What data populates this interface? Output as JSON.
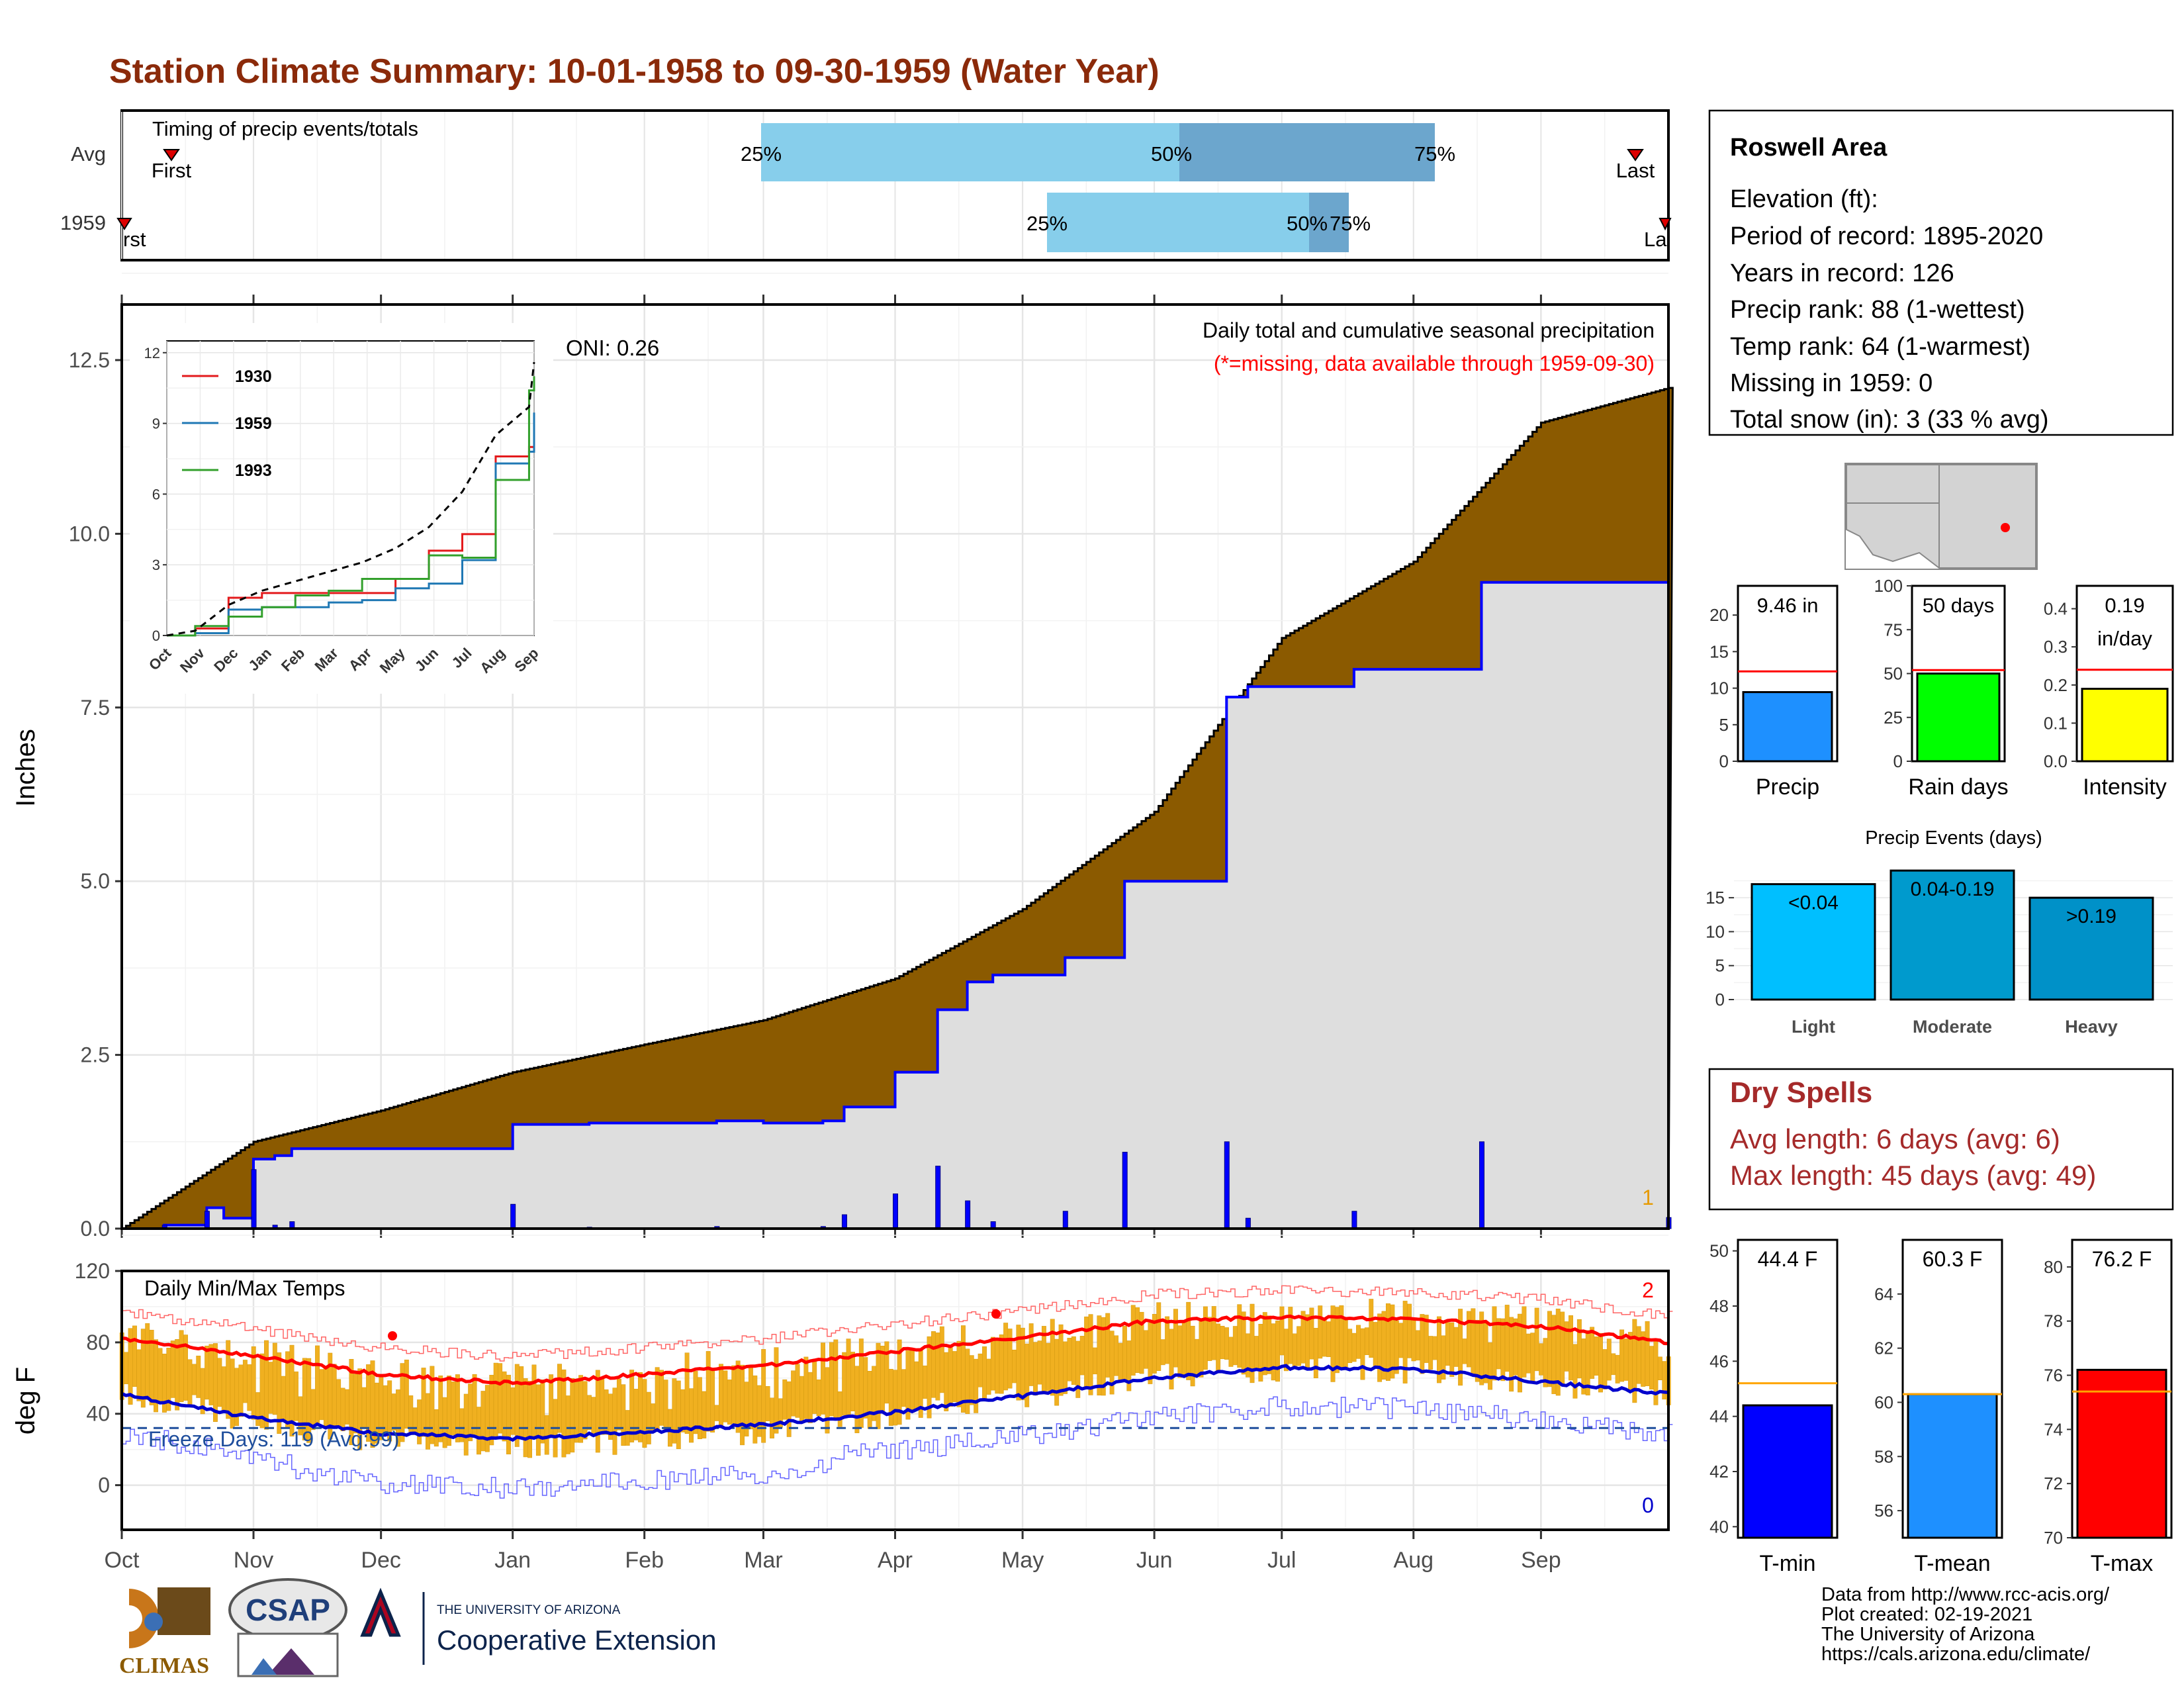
{
  "title": "Station Climate Summary: 10-01-1958 to 09-30-1959 (Water Year)",
  "colors": {
    "title": "#8B2A0A",
    "precip_fill": "#8B5A00",
    "avg_fill": "#DEDEDE",
    "this_year_line": "#0000FF",
    "tmax": "#FF0000",
    "tmin": "#0000CC",
    "temp_bar": "#F0B020",
    "timing_light": "#87CEEB",
    "timing_dark": "#6CA6CD",
    "dry_spells": "#A52A2A"
  },
  "months": [
    "Oct",
    "Nov",
    "Dec",
    "Jan",
    "Feb",
    "Mar",
    "Apr",
    "May",
    "Jun",
    "Jul",
    "Aug",
    "Sep"
  ],
  "timing": {
    "heading": "Timing of precip events/totals",
    "rows": [
      {
        "label": "Avg",
        "first_label": "First",
        "last_label": "Last",
        "p25": "25%",
        "p50": "50%",
        "p75": "75%"
      },
      {
        "label": "1959",
        "first_label": "rst",
        "last_label": "La",
        "p25": "25%",
        "p50": "50%",
        "p75": "75%"
      }
    ]
  },
  "station": {
    "name": "Roswell Area",
    "elevation": "Elevation (ft):",
    "period": "Period of record: 1895-2020",
    "years": "Years in record: 126",
    "precip_rank": "Precip rank: 88 (1-wettest)",
    "temp_rank": "Temp rank: 64 (1-warmest)",
    "missing": "Missing in 1959: 0",
    "snow": "Total snow (in): 3 (33 % avg)"
  },
  "precip_panel": {
    "ylabel": "Inches",
    "oni": "ONI: 0.26",
    "caption": "Daily total and cumulative seasonal precipitation",
    "note": "(*=missing, data available through 1959-09-30)",
    "count_label": "1",
    "yticks": [
      "0.0",
      "2.5",
      "5.0",
      "7.5",
      "10.0",
      "12.5"
    ]
  },
  "inset": {
    "yticks": [
      "0",
      "3",
      "6",
      "9",
      "12"
    ],
    "legend": [
      "1930",
      "1959",
      "1993"
    ]
  },
  "temp_panel": {
    "ylabel": "deg F",
    "caption": "Daily Min/Max Temps",
    "freeze": "Freeze Days: 119 (Avg:99)",
    "count_high": "2",
    "count_low": "0",
    "yticks": [
      "0",
      "40",
      "80",
      "120"
    ]
  },
  "mini_bars": [
    {
      "label": "Precip",
      "value_text": "9.46 in",
      "value": 9.46,
      "avg": 12.3,
      "ylim": [
        0,
        24
      ],
      "ticks": [
        "0",
        "5",
        "10",
        "15",
        "20"
      ],
      "color": "#1E90FF",
      "avg_color": "#FF0000"
    },
    {
      "label": "Rain days",
      "value_text": "50 days",
      "value": 50,
      "avg": 52,
      "ylim": [
        0,
        100
      ],
      "ticks": [
        "0",
        "25",
        "50",
        "75",
        "100"
      ],
      "color": "#00FF00",
      "avg_color": "#FF0000"
    },
    {
      "label": "Intensity",
      "value_text": "0.19",
      "value_text2": "in/day",
      "value": 0.19,
      "avg": 0.24,
      "ylim": [
        0,
        0.46
      ],
      "ticks": [
        "0.0",
        "0.1",
        "0.2",
        "0.3",
        "0.4"
      ],
      "color": "#FFFF00",
      "avg_color": "#FF0000"
    }
  ],
  "events": {
    "title": "Precip Events (days)",
    "ticks": [
      "0",
      "5",
      "10",
      "15"
    ],
    "bars": [
      {
        "label": "Light",
        "range": "<0.04",
        "value": 17,
        "color": "#00BFFF"
      },
      {
        "label": "Moderate",
        "range": "0.04-0.19",
        "value": 19,
        "color": "#009ACD"
      },
      {
        "label": "Heavy",
        "range": ">0.19",
        "value": 15,
        "color": "#0091C8"
      }
    ]
  },
  "dry_spells": {
    "title": "Dry Spells",
    "avg": "Avg length: 6 days (avg: 6)",
    "max": "Max length: 45 days (avg: 49)"
  },
  "temp_bars": [
    {
      "label": "T-min",
      "value_text": "44.4 F",
      "value": 44.4,
      "avg": 45.2,
      "ylim": [
        39.6,
        50.4
      ],
      "ticks": [
        "40",
        "42",
        "44",
        "46",
        "48",
        "50"
      ],
      "color": "#0000FF"
    },
    {
      "label": "T-mean",
      "value_text": "60.3 F",
      "value": 60.3,
      "avg": 60.3,
      "ylim": [
        55,
        66
      ],
      "ticks": [
        "56",
        "58",
        "60",
        "62",
        "64"
      ],
      "color": "#1E90FF"
    },
    {
      "label": "T-max",
      "value_text": "76.2 F",
      "value": 76.2,
      "avg": 75.4,
      "ylim": [
        70,
        81
      ],
      "ticks": [
        "70",
        "72",
        "74",
        "76",
        "78",
        "80"
      ],
      "color": "#FF0000"
    }
  ],
  "footer": {
    "source": "Data from http://www.rcc-acis.org/",
    "created": "Plot created: 02-19-2021",
    "org": "The University of Arizona",
    "url": "https://cals.arizona.edu/climate/",
    "logo_climas": "CLIMAS",
    "logo_csap": "CSAP",
    "ua_small": "THE UNIVERSITY OF ARIZONA",
    "ua_big": "Cooperative Extension"
  },
  "chart_data": [
    {
      "type": "area",
      "title": "Daily total and cumulative seasonal precipitation",
      "ylabel": "Inches",
      "ylim": [
        0,
        13.3
      ],
      "x_axis": "day of water year (Oct 1 = 0)",
      "series": [
        {
          "name": "Average cumulative",
          "x": [
            0,
            31,
            61,
            92,
            123,
            151,
            182,
            212,
            243,
            273,
            304,
            334,
            364
          ],
          "values": [
            0,
            1.25,
            1.7,
            2.25,
            2.65,
            3.0,
            3.6,
            4.6,
            6.0,
            8.5,
            9.6,
            11.6,
            12.1
          ]
        },
        {
          "name": "1959",
          "x": [
            0,
            10,
            20,
            24,
            31,
            36,
            40,
            61,
            92,
            110,
            140,
            151,
            165,
            170,
            182,
            192,
            199,
            205,
            216,
            222,
            236,
            250,
            260,
            265,
            273,
            278,
            290,
            320,
            364
          ],
          "values": [
            0,
            0.05,
            0.3,
            0.15,
            1.0,
            1.05,
            1.15,
            1.15,
            1.5,
            1.52,
            1.55,
            1.52,
            1.55,
            1.75,
            2.25,
            3.15,
            3.55,
            3.65,
            3.65,
            3.9,
            5.0,
            5.0,
            7.65,
            7.8,
            7.8,
            7.8,
            8.05,
            9.3,
            9.46
          ]
        }
      ]
    },
    {
      "type": "line",
      "title": "Daily Min/Max Temps",
      "ylabel": "deg F",
      "ylim": [
        -25,
        120
      ],
      "series": [
        {
          "name": "avg max",
          "x": [
            0,
            30,
            61,
            92,
            123,
            151,
            182,
            212,
            243,
            273,
            304,
            334,
            364
          ],
          "values": [
            82,
            73,
            62,
            57,
            62,
            67,
            75,
            83,
            92,
            94,
            93,
            89,
            80
          ]
        },
        {
          "name": "avg min",
          "x": [
            0,
            30,
            61,
            92,
            123,
            151,
            182,
            212,
            243,
            273,
            304,
            334,
            364
          ],
          "values": [
            51,
            38,
            29,
            26,
            30,
            34,
            41,
            50,
            60,
            66,
            65,
            58,
            51
          ]
        },
        {
          "name": "freeze line",
          "x": [
            0,
            364
          ],
          "values": [
            32,
            32
          ]
        }
      ]
    },
    {
      "type": "line",
      "title": "",
      "ylim": [
        0,
        12.5
      ],
      "categories": [
        "Oct",
        "Nov",
        "Dec",
        "Jan",
        "Feb",
        "Mar",
        "Apr",
        "May",
        "Jun",
        "Jul",
        "Aug",
        "Sep"
      ],
      "series": [
        {
          "name": "1930",
          "values": [
            0.3,
            1.6,
            1.8,
            1.8,
            1.8,
            1.8,
            2.4,
            3.6,
            4.3,
            7.6,
            8.0,
            8.5
          ]
        },
        {
          "name": "1959",
          "values": [
            0.1,
            1.1,
            1.2,
            1.2,
            1.4,
            1.5,
            2.0,
            2.2,
            3.2,
            7.3,
            7.8,
            9.46
          ]
        },
        {
          "name": "1993",
          "values": [
            0.4,
            0.8,
            1.2,
            1.7,
            1.9,
            2.4,
            2.4,
            3.4,
            3.3,
            6.6,
            10.4,
            11.0
          ]
        },
        {
          "name": "average",
          "values": [
            0.2,
            1.3,
            1.9,
            2.3,
            2.7,
            3.1,
            3.7,
            4.6,
            6.1,
            8.5,
            9.7,
            11.6
          ]
        }
      ]
    }
  ]
}
